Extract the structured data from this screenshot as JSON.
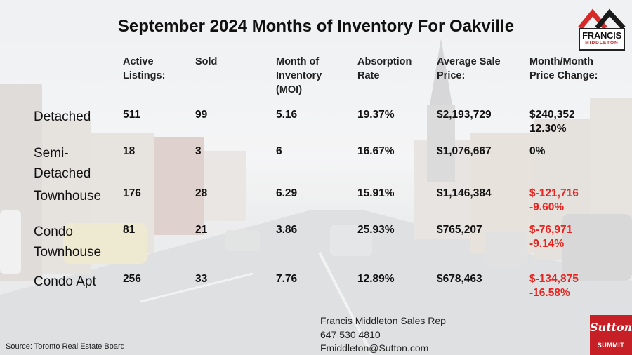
{
  "title": "September 2024 Months of Inventory For Oakville",
  "logo": {
    "name": "FRANCIS",
    "sub": "MIDDLETON",
    "roof_color": "#d62a2a"
  },
  "columns": {
    "active_line1": "Active",
    "active_line2": "Listings:",
    "sold": "Sold",
    "moi_line1": "Month of",
    "moi_line2": "Inventory",
    "moi_line3": "(MOI)",
    "absorption_line1": "Absorption",
    "absorption_line2": "Rate",
    "price_line1": "Average Sale",
    "price_line2": "Price:",
    "change_line1": "Month/Month",
    "change_line2": "Price Change:"
  },
  "rows": [
    {
      "label_line1": "Detached",
      "label_line2": "",
      "active": "511",
      "sold": "99",
      "moi": "5.16",
      "absorption": "19.37%",
      "price": "$2,193,729",
      "change": "$240,352",
      "change_pct": "12.30%",
      "negative": false
    },
    {
      "label_line1": "Semi-",
      "label_line2": "Detached",
      "active": "18",
      "sold": "3",
      "moi": "6",
      "absorption": "16.67%",
      "price": "$1,076,667",
      "change": "0%",
      "change_pct": "",
      "negative": false
    },
    {
      "label_line1": "Townhouse",
      "label_line2": "",
      "active": "176",
      "sold": "28",
      "moi": "6.29",
      "absorption": "15.91%",
      "price": "$1,146,384",
      "change": "$-121,716",
      "change_pct": "-9.60%",
      "negative": true
    },
    {
      "label_line1": "Condo",
      "label_line2": "Townhouse",
      "active": "81",
      "sold": "21",
      "moi": "3.86",
      "absorption": "25.93%",
      "price": "$765,207",
      "change": "$-76,971",
      "change_pct": "-9.14%",
      "negative": true
    },
    {
      "label_line1": "Condo Apt",
      "label_line2": "",
      "active": "256",
      "sold": "33",
      "moi": "7.76",
      "absorption": "12.89%",
      "price": "$678,463",
      "change": "$-134,875",
      "change_pct": "-16.58%",
      "negative": true
    }
  ],
  "footer": {
    "source": "Source: Toronto Real Estate Board",
    "contact_name": "Francis Middleton Sales Rep",
    "contact_phone": "647 530 4810",
    "contact_email": "Fmiddleton@Sutton.com"
  },
  "brand": {
    "name": "Sutton",
    "sub": "SUMMIT",
    "color": "#c71f26"
  },
  "colors": {
    "negative": "#e8231f",
    "text": "#111111"
  }
}
